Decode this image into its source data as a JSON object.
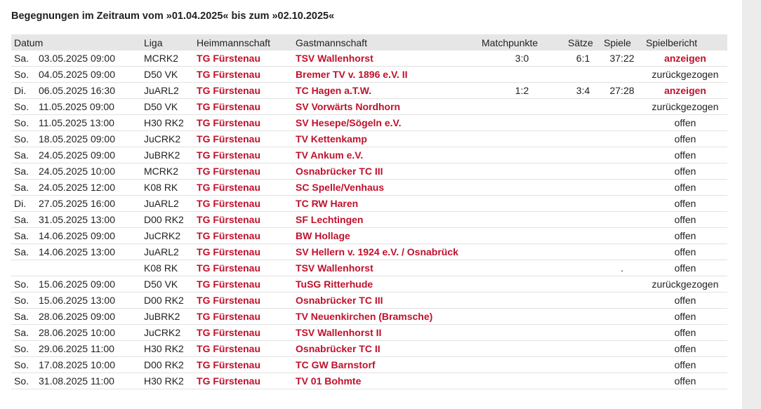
{
  "heading": "Begegnungen im Zeitraum vom »01.04.2025« bis zum »02.10.2025«",
  "columns": {
    "datum": "Datum",
    "liga": "Liga",
    "heim": "Heimmannschaft",
    "gast": "Gastmannschaft",
    "matchpunkte": "Matchpunkte",
    "saetze": "Sätze",
    "spiele": "Spiele",
    "spielbericht": "Spielbericht"
  },
  "colors": {
    "team_link": "#c0112b",
    "header_bg": "#e6e6e6",
    "row_border": "#e2e2e2"
  },
  "rows": [
    {
      "day": "Sa.",
      "date": "03.05.2025 09:00",
      "liga": "MCRK2",
      "home": "TG Fürstenau",
      "guest": "TSV Wallenhorst",
      "mp": "3:0",
      "saetze": "6:1",
      "spiele": "37:22",
      "report": "anzeigen",
      "report_link": true
    },
    {
      "day": "So.",
      "date": "04.05.2025 09:00",
      "liga": "D50 VK",
      "home": "TG Fürstenau",
      "guest": "Bremer TV v. 1896 e.V. II",
      "mp": "",
      "saetze": "",
      "spiele": "",
      "report": "zurückgezogen",
      "report_link": false
    },
    {
      "day": "Di.",
      "date": "06.05.2025 16:30",
      "liga": "JuARL2",
      "home": "TG Fürstenau",
      "guest": "TC Hagen a.T.W.",
      "mp": "1:2",
      "saetze": "3:4",
      "spiele": "27:28",
      "report": "anzeigen",
      "report_link": true
    },
    {
      "day": "So.",
      "date": "11.05.2025 09:00",
      "liga": "D50 VK",
      "home": "TG Fürstenau",
      "guest": "SV Vorwärts Nordhorn",
      "mp": "",
      "saetze": "",
      "spiele": "",
      "report": "zurückgezogen",
      "report_link": false
    },
    {
      "day": "So.",
      "date": "11.05.2025 13:00",
      "liga": "H30 RK2",
      "home": "TG Fürstenau",
      "guest": "SV Hesepe/Sögeln e.V.",
      "mp": "",
      "saetze": "",
      "spiele": "",
      "report": "offen",
      "report_link": false
    },
    {
      "day": "So.",
      "date": "18.05.2025 09:00",
      "liga": "JuCRK2",
      "home": "TG Fürstenau",
      "guest": "TV Kettenkamp",
      "mp": "",
      "saetze": "",
      "spiele": "",
      "report": "offen",
      "report_link": false
    },
    {
      "day": "Sa.",
      "date": "24.05.2025 09:00",
      "liga": "JuBRK2",
      "home": "TG Fürstenau",
      "guest": "TV Ankum e.V.",
      "mp": "",
      "saetze": "",
      "spiele": "",
      "report": "offen",
      "report_link": false
    },
    {
      "day": "Sa.",
      "date": "24.05.2025 10:00",
      "liga": "MCRK2",
      "home": "TG Fürstenau",
      "guest": "Osnabrücker TC III",
      "mp": "",
      "saetze": "",
      "spiele": "",
      "report": "offen",
      "report_link": false
    },
    {
      "day": "Sa.",
      "date": "24.05.2025 12:00",
      "liga": "K08 RK",
      "home": "TG Fürstenau",
      "guest": "SC Spelle/Venhaus",
      "mp": "",
      "saetze": "",
      "spiele": "",
      "report": "offen",
      "report_link": false
    },
    {
      "day": "Di.",
      "date": "27.05.2025 16:00",
      "liga": "JuARL2",
      "home": "TG Fürstenau",
      "guest": "TC RW Haren",
      "mp": "",
      "saetze": "",
      "spiele": "",
      "report": "offen",
      "report_link": false
    },
    {
      "day": "Sa.",
      "date": "31.05.2025 13:00",
      "liga": "D00 RK2",
      "home": "TG Fürstenau",
      "guest": "SF Lechtingen",
      "mp": "",
      "saetze": "",
      "spiele": "",
      "report": "offen",
      "report_link": false
    },
    {
      "day": "Sa.",
      "date": "14.06.2025 09:00",
      "liga": "JuCRK2",
      "home": "TG Fürstenau",
      "guest": "BW Hollage",
      "mp": "",
      "saetze": "",
      "spiele": "",
      "report": "offen",
      "report_link": false
    },
    {
      "day": "Sa.",
      "date": "14.06.2025 13:00",
      "liga": "JuARL2",
      "home": "TG Fürstenau",
      "guest": "SV Hellern v. 1924 e.V. / Osnabrück",
      "mp": "",
      "saetze": "",
      "spiele": "",
      "report": "offen",
      "report_link": false
    },
    {
      "day": "",
      "date": "",
      "liga": "K08 RK",
      "home": "TG Fürstenau",
      "guest": "TSV Wallenhorst",
      "mp": "",
      "saetze": "",
      "spiele": ".",
      "report": "offen",
      "report_link": false
    },
    {
      "day": "So.",
      "date": "15.06.2025 09:00",
      "liga": "D50 VK",
      "home": "TG Fürstenau",
      "guest": "TuSG Ritterhude",
      "mp": "",
      "saetze": "",
      "spiele": "",
      "report": "zurückgezogen",
      "report_link": false
    },
    {
      "day": "So.",
      "date": "15.06.2025 13:00",
      "liga": "D00 RK2",
      "home": "TG Fürstenau",
      "guest": "Osnabrücker TC III",
      "mp": "",
      "saetze": "",
      "spiele": "",
      "report": "offen",
      "report_link": false
    },
    {
      "day": "Sa.",
      "date": "28.06.2025 09:00",
      "liga": "JuBRK2",
      "home": "TG Fürstenau",
      "guest": "TV Neuenkirchen (Bramsche)",
      "mp": "",
      "saetze": "",
      "spiele": "",
      "report": "offen",
      "report_link": false
    },
    {
      "day": "Sa.",
      "date": "28.06.2025 10:00",
      "liga": "JuCRK2",
      "home": "TG Fürstenau",
      "guest": "TSV Wallenhorst II",
      "mp": "",
      "saetze": "",
      "spiele": "",
      "report": "offen",
      "report_link": false
    },
    {
      "day": "So.",
      "date": "29.06.2025 11:00",
      "liga": "H30 RK2",
      "home": "TG Fürstenau",
      "guest": "Osnabrücker TC II",
      "mp": "",
      "saetze": "",
      "spiele": "",
      "report": "offen",
      "report_link": false
    },
    {
      "day": "So.",
      "date": "17.08.2025 10:00",
      "liga": "D00 RK2",
      "home": "TG Fürstenau",
      "guest": "TC GW Barnstorf",
      "mp": "",
      "saetze": "",
      "spiele": "",
      "report": "offen",
      "report_link": false
    },
    {
      "day": "So.",
      "date": "31.08.2025 11:00",
      "liga": "H30 RK2",
      "home": "TG Fürstenau",
      "guest": "TV 01 Bohmte",
      "mp": "",
      "saetze": "",
      "spiele": "",
      "report": "offen",
      "report_link": false
    }
  ]
}
